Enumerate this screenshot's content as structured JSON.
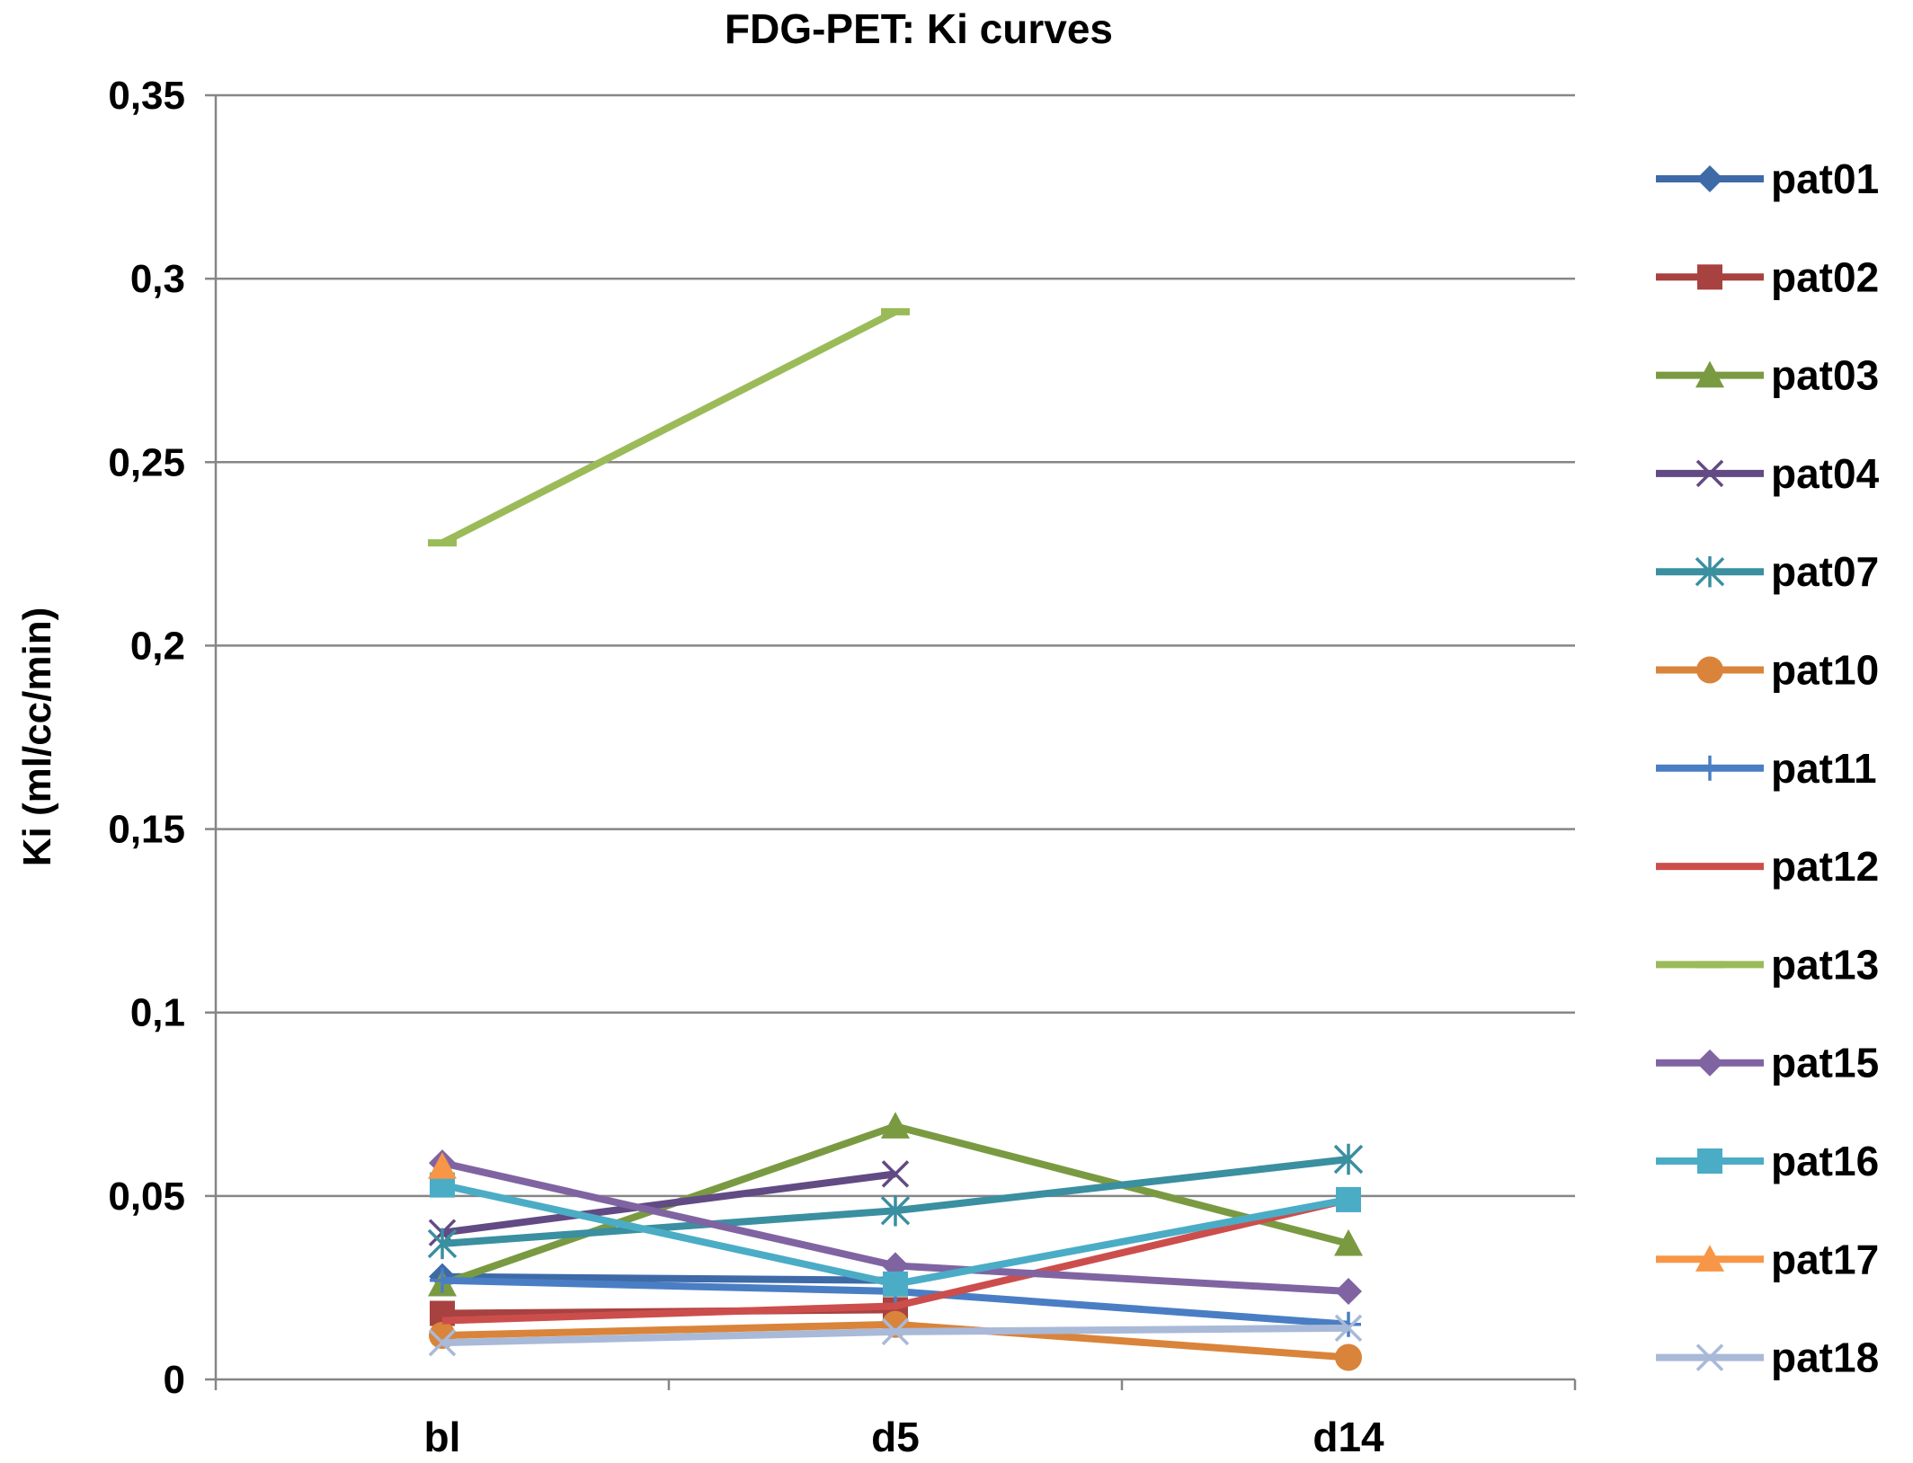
{
  "chart_data": {
    "type": "line",
    "title": "FDG-PET: Ki curves",
    "xlabel": "",
    "ylabel": "Ki (ml/cc/min)",
    "categories": [
      "bl",
      "d5",
      "d14"
    ],
    "ylim": [
      0,
      0.35
    ],
    "yticks": [
      0,
      0.05,
      0.1,
      0.15,
      0.2,
      0.25,
      0.3,
      0.35
    ],
    "ytick_labels": [
      "0",
      "0,05",
      "0,1",
      "0,15",
      "0,2",
      "0,25",
      "0,3",
      "0,35"
    ],
    "grid": true,
    "legend_position": "right",
    "series": [
      {
        "name": "pat01",
        "color": "#3E6AA8",
        "marker": "diamond",
        "values": [
          0.028,
          0.027,
          null
        ]
      },
      {
        "name": "pat02",
        "color": "#A84240",
        "marker": "square",
        "values": [
          0.018,
          0.019,
          null
        ]
      },
      {
        "name": "pat03",
        "color": "#7A9A42",
        "marker": "triangle",
        "values": [
          0.026,
          0.069,
          0.037
        ]
      },
      {
        "name": "pat04",
        "color": "#624A84",
        "marker": "x",
        "values": [
          0.04,
          0.056,
          null
        ]
      },
      {
        "name": "pat07",
        "color": "#3A8FA0",
        "marker": "asterisk",
        "values": [
          0.037,
          0.046,
          0.06
        ]
      },
      {
        "name": "pat10",
        "color": "#D9843A",
        "marker": "circle",
        "values": [
          0.012,
          0.015,
          0.006
        ]
      },
      {
        "name": "pat11",
        "color": "#4A7EC4",
        "marker": "plus",
        "values": [
          0.027,
          0.024,
          0.015
        ]
      },
      {
        "name": "pat12",
        "color": "#CC4E4C",
        "marker": "none",
        "values": [
          0.016,
          0.02,
          0.049
        ]
      },
      {
        "name": "pat13",
        "color": "#9BBB59",
        "marker": "dash",
        "values": [
          0.228,
          0.291,
          null
        ]
      },
      {
        "name": "pat15",
        "color": "#8064A2",
        "marker": "diamond",
        "values": [
          0.059,
          0.031,
          0.024
        ]
      },
      {
        "name": "pat16",
        "color": "#4BACC6",
        "marker": "square",
        "values": [
          0.053,
          0.026,
          0.049
        ]
      },
      {
        "name": "pat17",
        "color": "#F79646",
        "marker": "triangle",
        "values": [
          0.058,
          null,
          null
        ]
      },
      {
        "name": "pat18",
        "color": "#A9B9D8",
        "marker": "x",
        "values": [
          0.01,
          0.013,
          0.014
        ]
      }
    ]
  }
}
